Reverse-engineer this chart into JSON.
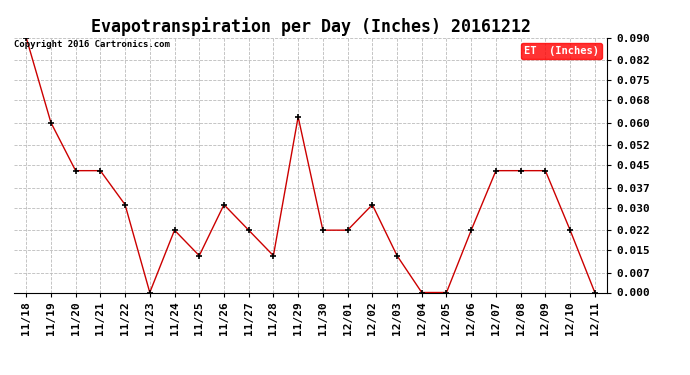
{
  "title": "Evapotranspiration per Day (Inches) 20161212",
  "copyright_text": "Copyright 2016 Cartronics.com",
  "legend_label": "ET  (Inches)",
  "legend_bg": "#ff0000",
  "legend_fg": "#ffffff",
  "x_labels": [
    "11/18",
    "11/19",
    "11/20",
    "11/21",
    "11/22",
    "11/23",
    "11/24",
    "11/25",
    "11/26",
    "11/27",
    "11/28",
    "11/29",
    "11/30",
    "12/01",
    "12/02",
    "12/03",
    "12/04",
    "12/05",
    "12/06",
    "12/07",
    "12/08",
    "12/09",
    "12/10",
    "12/11"
  ],
  "y_values": [
    0.09,
    0.06,
    0.043,
    0.043,
    0.031,
    0.0,
    0.022,
    0.013,
    0.031,
    0.022,
    0.013,
    0.062,
    0.022,
    0.022,
    0.031,
    0.013,
    0.0,
    0.0,
    0.022,
    0.043,
    0.043,
    0.043,
    0.022,
    0.0
  ],
  "line_color": "#cc0000",
  "marker_color": "#000000",
  "background_color": "#ffffff",
  "plot_bg_color": "#ffffff",
  "grid_color": "#bbbbbb",
  "ylim": [
    0.0,
    0.09
  ],
  "yticks": [
    0.0,
    0.007,
    0.015,
    0.022,
    0.03,
    0.037,
    0.045,
    0.052,
    0.06,
    0.068,
    0.075,
    0.082,
    0.09
  ],
  "title_fontsize": 12,
  "tick_fontsize": 8,
  "copyright_fontsize": 6.5
}
